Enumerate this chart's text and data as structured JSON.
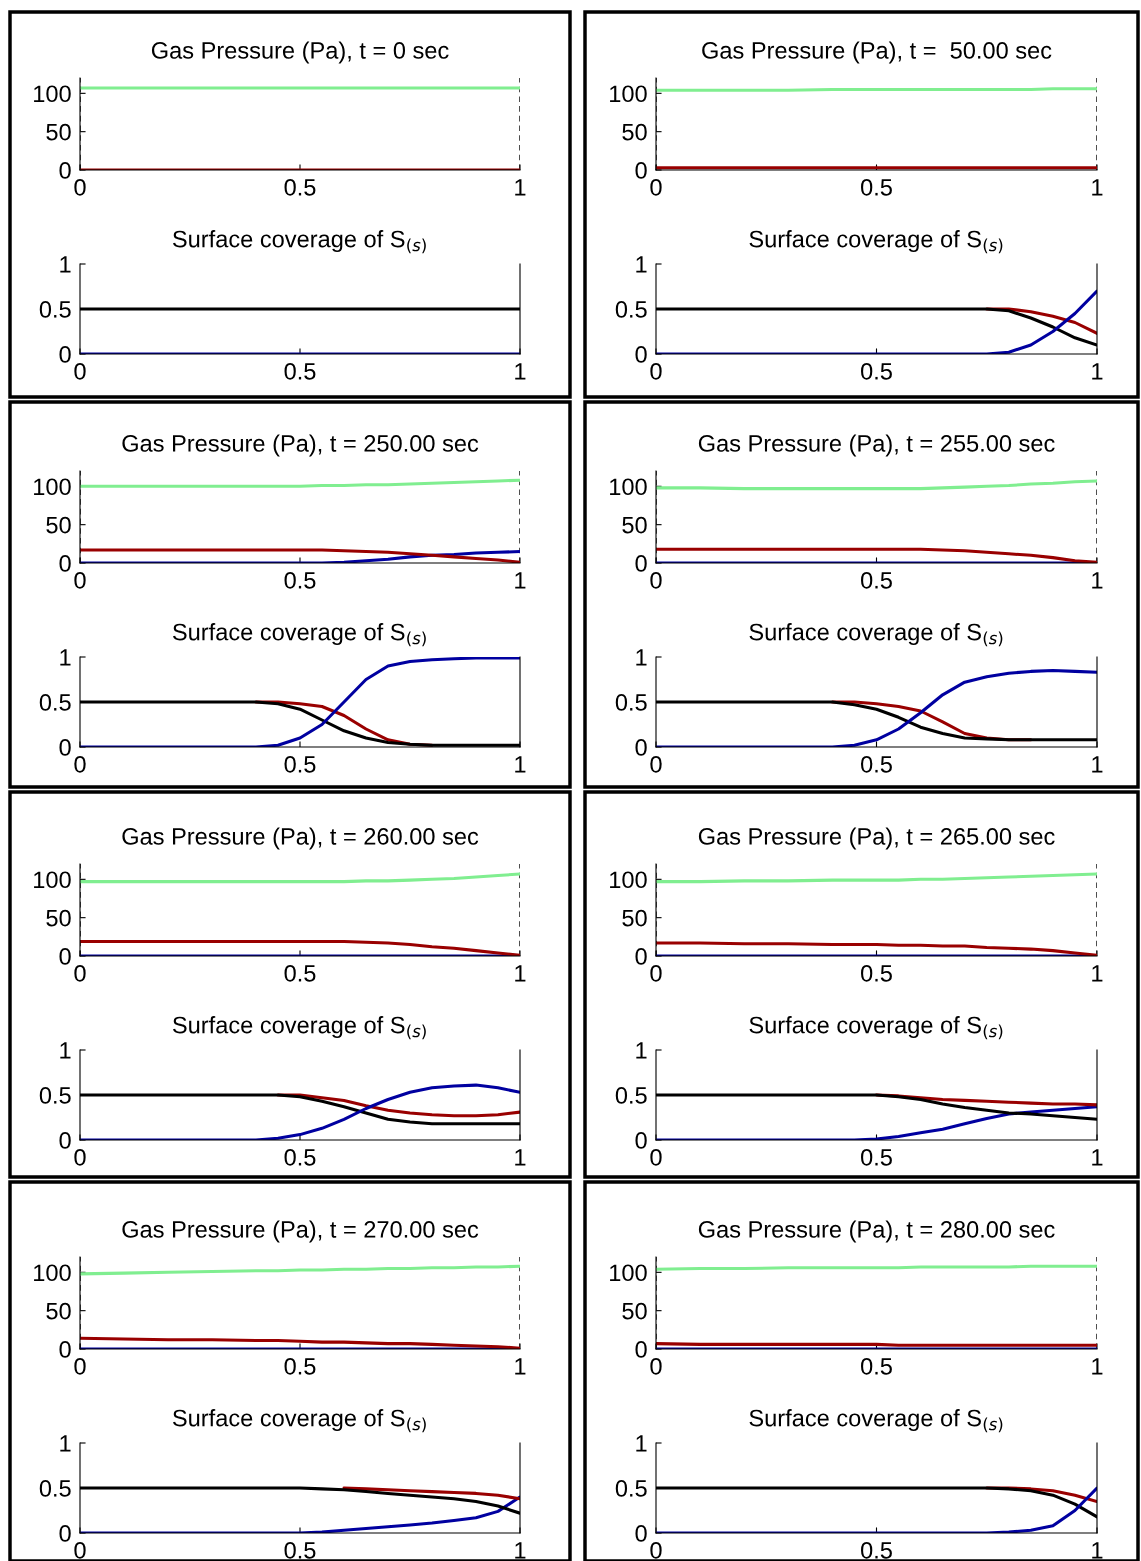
{
  "chart_data": [
    {
      "type": "line",
      "title": "Gas Pressure (Pa), t = 0 sec",
      "x": [
        0,
        0.1,
        0.2,
        0.3,
        0.4,
        0.45,
        0.5,
        0.55,
        0.6,
        0.65,
        0.7,
        0.75,
        0.8,
        0.85,
        0.9,
        0.95,
        1
      ],
      "xlim": [
        0,
        1
      ],
      "xticks": [
        0,
        0.5,
        1
      ],
      "ylim": [
        0,
        120
      ],
      "yticks": [
        0,
        50,
        100
      ],
      "ref_lines": [
        {
          "axis": "x",
          "value": 0,
          "line_style": "dashed",
          "color": "#000000"
        },
        {
          "axis": "x",
          "value": 1,
          "line_style": "dashed",
          "color": "#000000"
        }
      ],
      "series": [
        {
          "color": "#80ee90",
          "values": [
            107,
            107,
            107,
            107,
            107,
            107,
            107,
            107,
            107,
            107,
            107,
            107,
            107,
            107,
            107,
            107,
            107
          ]
        },
        {
          "color": "#990000",
          "values": [
            0,
            0,
            0,
            0,
            0,
            0,
            0,
            0,
            0,
            0,
            0,
            0,
            0,
            0,
            0,
            0,
            0
          ]
        }
      ]
    },
    {
      "type": "line",
      "title": "Gas Pressure (Pa), t =  50.00 sec",
      "x": [
        0,
        0.1,
        0.2,
        0.3,
        0.4,
        0.45,
        0.5,
        0.55,
        0.6,
        0.65,
        0.7,
        0.75,
        0.8,
        0.85,
        0.9,
        0.95,
        1
      ],
      "xlim": [
        0,
        1
      ],
      "xticks": [
        0,
        0.5,
        1
      ],
      "ylim": [
        0,
        120
      ],
      "yticks": [
        0,
        50,
        100
      ],
      "ref_lines": [
        {
          "axis": "x",
          "value": 0,
          "line_style": "dashed",
          "color": "#000000"
        },
        {
          "axis": "x",
          "value": 1,
          "line_style": "dashed",
          "color": "#000000"
        }
      ],
      "series": [
        {
          "color": "#80ee90",
          "values": [
            104,
            104,
            104,
            104,
            105,
            105,
            105,
            105,
            105,
            105,
            105,
            105,
            105,
            105,
            106,
            106,
            106
          ]
        },
        {
          "color": "#990000",
          "values": [
            3,
            3,
            3,
            3,
            3,
            3,
            3,
            3,
            3,
            3,
            3,
            3,
            3,
            3,
            3,
            3,
            3
          ]
        }
      ]
    },
    {
      "type": "line",
      "title": "Surface coverage of S$_{(s)}$",
      "x": [
        0,
        0.1,
        0.2,
        0.3,
        0.4,
        0.45,
        0.5,
        0.55,
        0.6,
        0.65,
        0.7,
        0.75,
        0.8,
        0.85,
        0.9,
        0.95,
        1
      ],
      "xlim": [
        0,
        1
      ],
      "xticks": [
        0,
        0.5,
        1
      ],
      "ylim": [
        0,
        1
      ],
      "yticks": [
        0,
        0.5,
        1
      ],
      "series": [
        {
          "color": "#000000",
          "values": [
            0.5,
            0.5,
            0.5,
            0.5,
            0.5,
            0.5,
            0.5,
            0.5,
            0.5,
            0.5,
            0.5,
            0.5,
            0.5,
            0.5,
            0.5,
            0.5,
            0.5
          ]
        },
        {
          "color": "#0000a0",
          "values": [
            0,
            0,
            0,
            0,
            0,
            0,
            0,
            0,
            0,
            0,
            0,
            0,
            0,
            0,
            0,
            0,
            0
          ]
        }
      ]
    },
    {
      "type": "line",
      "title": "Surface coverage of S$_{(s)}$",
      "x": [
        0,
        0.1,
        0.2,
        0.3,
        0.4,
        0.45,
        0.5,
        0.55,
        0.6,
        0.65,
        0.7,
        0.75,
        0.8,
        0.85,
        0.9,
        0.95,
        1
      ],
      "xlim": [
        0,
        1
      ],
      "xticks": [
        0,
        0.5,
        1
      ],
      "ylim": [
        0,
        1
      ],
      "yticks": [
        0,
        0.5,
        1
      ],
      "series": [
        {
          "color": "#990000",
          "values": [
            null,
            null,
            null,
            null,
            null,
            null,
            null,
            null,
            null,
            null,
            null,
            0.5,
            0.5,
            0.47,
            0.42,
            0.35,
            0.23
          ]
        },
        {
          "color": "#000000",
          "values": [
            0.5,
            0.5,
            0.5,
            0.5,
            0.5,
            0.5,
            0.5,
            0.5,
            0.5,
            0.5,
            0.5,
            0.5,
            0.48,
            0.4,
            0.3,
            0.18,
            0.1
          ]
        },
        {
          "color": "#0000a0",
          "values": [
            0,
            0,
            0,
            0,
            0,
            0,
            0,
            0,
            0,
            0,
            0,
            0,
            0.02,
            0.1,
            0.25,
            0.45,
            0.7
          ]
        }
      ]
    },
    {
      "type": "line",
      "title": "Gas Pressure (Pa), t = 250.00 sec",
      "x": [
        0,
        0.1,
        0.2,
        0.3,
        0.4,
        0.45,
        0.5,
        0.55,
        0.6,
        0.65,
        0.7,
        0.75,
        0.8,
        0.85,
        0.9,
        0.95,
        1
      ],
      "xlim": [
        0,
        1
      ],
      "xticks": [
        0,
        0.5,
        1
      ],
      "ylim": [
        0,
        120
      ],
      "yticks": [
        0,
        50,
        100
      ],
      "ref_lines": [
        {
          "axis": "x",
          "value": 0,
          "line_style": "dashed",
          "color": "#000000"
        },
        {
          "axis": "x",
          "value": 1,
          "line_style": "dashed",
          "color": "#000000"
        }
      ],
      "series": [
        {
          "color": "#80ee90",
          "values": [
            100,
            100,
            100,
            100,
            100,
            100,
            100,
            101,
            101,
            102,
            102,
            103,
            104,
            105,
            106,
            107,
            108
          ]
        },
        {
          "color": "#0000a0",
          "values": [
            0,
            0,
            0,
            0,
            0,
            0,
            0,
            0,
            1,
            3,
            5,
            8,
            10,
            11,
            13,
            14,
            15
          ]
        },
        {
          "color": "#990000",
          "values": [
            17,
            17,
            17,
            17,
            17,
            17,
            17,
            17,
            16,
            15,
            14,
            12,
            10,
            8,
            6,
            4,
            1
          ]
        }
      ]
    },
    {
      "type": "line",
      "title": "Gas Pressure (Pa), t = 255.00 sec",
      "x": [
        0,
        0.1,
        0.2,
        0.3,
        0.4,
        0.45,
        0.5,
        0.55,
        0.6,
        0.65,
        0.7,
        0.75,
        0.8,
        0.85,
        0.9,
        0.95,
        1
      ],
      "xlim": [
        0,
        1
      ],
      "xticks": [
        0,
        0.5,
        1
      ],
      "ylim": [
        0,
        120
      ],
      "yticks": [
        0,
        50,
        100
      ],
      "ref_lines": [
        {
          "axis": "x",
          "value": 0,
          "line_style": "dashed",
          "color": "#000000"
        },
        {
          "axis": "x",
          "value": 1,
          "line_style": "dashed",
          "color": "#000000"
        }
      ],
      "series": [
        {
          "color": "#80ee90",
          "values": [
            98,
            98,
            97,
            97,
            97,
            97,
            97,
            97,
            97,
            98,
            99,
            100,
            101,
            103,
            104,
            106,
            107
          ]
        },
        {
          "color": "#0000a0",
          "values": [
            0,
            0,
            0,
            0,
            0,
            0,
            0,
            0,
            0,
            0,
            0,
            0,
            0,
            0,
            0,
            0,
            0
          ]
        },
        {
          "color": "#990000",
          "values": [
            18,
            18,
            18,
            18,
            18,
            18,
            18,
            18,
            18,
            17,
            16,
            14,
            12,
            10,
            7,
            3,
            1
          ]
        }
      ]
    },
    {
      "type": "line",
      "title": "Surface coverage of S$_{(s)}$",
      "x": [
        0,
        0.1,
        0.2,
        0.3,
        0.4,
        0.45,
        0.5,
        0.55,
        0.6,
        0.65,
        0.7,
        0.75,
        0.8,
        0.85,
        0.9,
        0.95,
        1
      ],
      "xlim": [
        0,
        1
      ],
      "xticks": [
        0,
        0.5,
        1
      ],
      "ylim": [
        0,
        1
      ],
      "yticks": [
        0,
        0.5,
        1
      ],
      "series": [
        {
          "color": "#990000",
          "values": [
            null,
            null,
            null,
            null,
            0.5,
            0.5,
            0.48,
            0.45,
            0.35,
            0.2,
            0.08,
            0.03,
            0.02,
            null,
            null,
            null,
            null
          ]
        },
        {
          "color": "#000000",
          "values": [
            0.5,
            0.5,
            0.5,
            0.5,
            0.5,
            0.48,
            0.42,
            0.3,
            0.18,
            0.1,
            0.05,
            0.03,
            0.02,
            0.02,
            0.02,
            0.02,
            0.02
          ]
        },
        {
          "color": "#0000a0",
          "values": [
            0,
            0,
            0,
            0,
            0,
            0.02,
            0.1,
            0.25,
            0.5,
            0.75,
            0.9,
            0.95,
            0.97,
            0.98,
            0.99,
            0.99,
            0.99
          ]
        }
      ]
    },
    {
      "type": "line",
      "title": "Surface coverage of S$_{(s)}$",
      "x": [
        0,
        0.1,
        0.2,
        0.3,
        0.4,
        0.45,
        0.5,
        0.55,
        0.6,
        0.65,
        0.7,
        0.75,
        0.8,
        0.85,
        0.9,
        0.95,
        1
      ],
      "xlim": [
        0,
        1
      ],
      "xticks": [
        0,
        0.5,
        1
      ],
      "ylim": [
        0,
        1
      ],
      "yticks": [
        0,
        0.5,
        1
      ],
      "series": [
        {
          "color": "#990000",
          "values": [
            null,
            null,
            null,
            null,
            0.5,
            0.5,
            0.48,
            0.45,
            0.4,
            0.28,
            0.15,
            0.1,
            0.08,
            0.08,
            null,
            null,
            null
          ]
        },
        {
          "color": "#000000",
          "values": [
            0.5,
            0.5,
            0.5,
            0.5,
            0.5,
            0.47,
            0.42,
            0.33,
            0.22,
            0.15,
            0.1,
            0.09,
            0.08,
            0.08,
            0.08,
            0.08,
            0.08
          ]
        },
        {
          "color": "#0000a0",
          "values": [
            0,
            0,
            0,
            0,
            0,
            0.02,
            0.08,
            0.2,
            0.38,
            0.58,
            0.72,
            0.78,
            0.82,
            0.84,
            0.85,
            0.84,
            0.83
          ]
        }
      ]
    },
    {
      "type": "line",
      "title": "Gas Pressure (Pa), t = 260.00 sec",
      "x": [
        0,
        0.1,
        0.2,
        0.3,
        0.4,
        0.45,
        0.5,
        0.55,
        0.6,
        0.65,
        0.7,
        0.75,
        0.8,
        0.85,
        0.9,
        0.95,
        1
      ],
      "xlim": [
        0,
        1
      ],
      "xticks": [
        0,
        0.5,
        1
      ],
      "ylim": [
        0,
        120
      ],
      "yticks": [
        0,
        50,
        100
      ],
      "ref_lines": [
        {
          "axis": "x",
          "value": 0,
          "line_style": "dashed",
          "color": "#000000"
        },
        {
          "axis": "x",
          "value": 1,
          "line_style": "dashed",
          "color": "#000000"
        }
      ],
      "series": [
        {
          "color": "#80ee90",
          "values": [
            97,
            97,
            97,
            97,
            97,
            97,
            97,
            97,
            97,
            98,
            98,
            99,
            100,
            101,
            103,
            105,
            107
          ]
        },
        {
          "color": "#0000a0",
          "values": [
            0,
            0,
            0,
            0,
            0,
            0,
            0,
            0,
            0,
            0,
            0,
            0,
            0,
            0,
            0,
            0,
            0
          ]
        },
        {
          "color": "#990000",
          "values": [
            19,
            19,
            19,
            19,
            19,
            19,
            19,
            19,
            19,
            18,
            17,
            15,
            12,
            10,
            7,
            4,
            1
          ]
        }
      ]
    },
    {
      "type": "line",
      "title": "Gas Pressure (Pa), t = 265.00 sec",
      "x": [
        0,
        0.1,
        0.2,
        0.3,
        0.4,
        0.45,
        0.5,
        0.55,
        0.6,
        0.65,
        0.7,
        0.75,
        0.8,
        0.85,
        0.9,
        0.95,
        1
      ],
      "xlim": [
        0,
        1
      ],
      "xticks": [
        0,
        0.5,
        1
      ],
      "ylim": [
        0,
        120
      ],
      "yticks": [
        0,
        50,
        100
      ],
      "ref_lines": [
        {
          "axis": "x",
          "value": 0,
          "line_style": "dashed",
          "color": "#000000"
        },
        {
          "axis": "x",
          "value": 1,
          "line_style": "dashed",
          "color": "#000000"
        }
      ],
      "series": [
        {
          "color": "#80ee90",
          "values": [
            97,
            97,
            98,
            98,
            99,
            99,
            99,
            99,
            100,
            100,
            101,
            102,
            103,
            104,
            105,
            106,
            107
          ]
        },
        {
          "color": "#0000a0",
          "values": [
            0,
            0,
            0,
            0,
            0,
            0,
            0,
            0,
            0,
            0,
            0,
            0,
            0,
            0,
            0,
            0,
            0
          ]
        },
        {
          "color": "#990000",
          "values": [
            17,
            17,
            16,
            16,
            15,
            15,
            15,
            14,
            14,
            13,
            13,
            11,
            10,
            9,
            7,
            4,
            1
          ]
        }
      ]
    },
    {
      "type": "line",
      "title": "Surface coverage of S$_{(s)}$",
      "x": [
        0,
        0.1,
        0.2,
        0.3,
        0.4,
        0.45,
        0.5,
        0.55,
        0.6,
        0.65,
        0.7,
        0.75,
        0.8,
        0.85,
        0.9,
        0.95,
        1
      ],
      "xlim": [
        0,
        1
      ],
      "xticks": [
        0,
        0.5,
        1
      ],
      "ylim": [
        0,
        1
      ],
      "yticks": [
        0,
        0.5,
        1
      ],
      "series": [
        {
          "color": "#990000",
          "values": [
            null,
            null,
            null,
            null,
            null,
            0.5,
            0.5,
            0.47,
            0.44,
            0.38,
            0.33,
            0.3,
            0.28,
            0.27,
            0.27,
            0.28,
            0.31
          ]
        },
        {
          "color": "#000000",
          "values": [
            0.5,
            0.5,
            0.5,
            0.5,
            0.5,
            0.5,
            0.48,
            0.43,
            0.37,
            0.3,
            0.23,
            0.2,
            0.18,
            0.18,
            0.18,
            0.18,
            0.18
          ]
        },
        {
          "color": "#0000a0",
          "values": [
            0,
            0,
            0,
            0,
            0,
            0.02,
            0.06,
            0.13,
            0.23,
            0.35,
            0.45,
            0.53,
            0.58,
            0.6,
            0.61,
            0.58,
            0.53
          ]
        }
      ]
    },
    {
      "type": "line",
      "title": "Surface coverage of S$_{(s)}$",
      "x": [
        0,
        0.1,
        0.2,
        0.3,
        0.4,
        0.45,
        0.5,
        0.55,
        0.6,
        0.65,
        0.7,
        0.75,
        0.8,
        0.85,
        0.9,
        0.95,
        1
      ],
      "xlim": [
        0,
        1
      ],
      "xticks": [
        0,
        0.5,
        1
      ],
      "ylim": [
        0,
        1
      ],
      "yticks": [
        0,
        0.5,
        1
      ],
      "series": [
        {
          "color": "#0000a0",
          "values": [
            0,
            0,
            0,
            0,
            0,
            0,
            0.01,
            0.04,
            0.08,
            0.12,
            0.18,
            0.24,
            0.29,
            0.31,
            0.33,
            0.35,
            0.37
          ]
        },
        {
          "color": "#990000",
          "values": [
            null,
            null,
            null,
            null,
            null,
            null,
            0.5,
            0.49,
            0.47,
            0.45,
            0.44,
            0.43,
            0.42,
            0.41,
            0.4,
            0.4,
            0.39
          ]
        },
        {
          "color": "#000000",
          "values": [
            0.5,
            0.5,
            0.5,
            0.5,
            0.5,
            0.5,
            0.5,
            0.48,
            0.45,
            0.4,
            0.36,
            0.33,
            0.3,
            0.29,
            0.27,
            0.25,
            0.23
          ]
        }
      ]
    },
    {
      "type": "line",
      "title": "Gas Pressure (Pa), t = 270.00 sec",
      "x": [
        0,
        0.1,
        0.2,
        0.3,
        0.4,
        0.45,
        0.5,
        0.55,
        0.6,
        0.65,
        0.7,
        0.75,
        0.8,
        0.85,
        0.9,
        0.95,
        1
      ],
      "xlim": [
        0,
        1
      ],
      "xticks": [
        0,
        0.5,
        1
      ],
      "ylim": [
        0,
        120
      ],
      "yticks": [
        0,
        50,
        100
      ],
      "ref_lines": [
        {
          "axis": "x",
          "value": 0,
          "line_style": "dashed",
          "color": "#000000"
        },
        {
          "axis": "x",
          "value": 1,
          "line_style": "dashed",
          "color": "#000000"
        }
      ],
      "series": [
        {
          "color": "#80ee90",
          "values": [
            98,
            99,
            100,
            101,
            102,
            102,
            103,
            103,
            104,
            104,
            105,
            105,
            106,
            106,
            107,
            107,
            108
          ]
        },
        {
          "color": "#0000a0",
          "values": [
            0,
            0,
            0,
            0,
            0,
            0,
            0,
            0,
            0,
            0,
            0,
            0,
            0,
            0,
            0,
            0,
            0
          ]
        },
        {
          "color": "#990000",
          "values": [
            14,
            13,
            12,
            12,
            11,
            11,
            10,
            9,
            9,
            8,
            7,
            7,
            6,
            5,
            4,
            3,
            1
          ]
        }
      ]
    },
    {
      "type": "line",
      "title": "Gas Pressure (Pa), t = 280.00 sec",
      "x": [
        0,
        0.1,
        0.2,
        0.3,
        0.4,
        0.45,
        0.5,
        0.55,
        0.6,
        0.65,
        0.7,
        0.75,
        0.8,
        0.85,
        0.9,
        0.95,
        1
      ],
      "xlim": [
        0,
        1
      ],
      "xticks": [
        0,
        0.5,
        1
      ],
      "ylim": [
        0,
        120
      ],
      "yticks": [
        0,
        50,
        100
      ],
      "ref_lines": [
        {
          "axis": "x",
          "value": 0,
          "line_style": "dashed",
          "color": "#000000"
        },
        {
          "axis": "x",
          "value": 1,
          "line_style": "dashed",
          "color": "#000000"
        }
      ],
      "series": [
        {
          "color": "#80ee90",
          "values": [
            104,
            105,
            105,
            106,
            106,
            106,
            106,
            106,
            107,
            107,
            107,
            107,
            107,
            108,
            108,
            108,
            108
          ]
        },
        {
          "color": "#990000",
          "values": [
            7,
            6,
            6,
            6,
            6,
            6,
            6,
            5,
            5,
            5,
            5,
            5,
            5,
            5,
            5,
            5,
            5
          ]
        },
        {
          "color": "#0000a0",
          "values": [
            0,
            0,
            0,
            0,
            0,
            0,
            0,
            0,
            0,
            0,
            0,
            0,
            0,
            0,
            0,
            0,
            0
          ]
        }
      ]
    },
    {
      "type": "line",
      "title": "Surface coverage of S$_{(s)}$",
      "x": [
        0,
        0.1,
        0.2,
        0.3,
        0.4,
        0.45,
        0.5,
        0.55,
        0.6,
        0.65,
        0.7,
        0.75,
        0.8,
        0.85,
        0.9,
        0.95,
        1
      ],
      "xlim": [
        0,
        1
      ],
      "xticks": [
        0,
        0.5,
        1
      ],
      "ylim": [
        0,
        1
      ],
      "yticks": [
        0,
        0.5,
        1
      ],
      "series": [
        {
          "color": "#0000a0",
          "values": [
            0,
            0,
            0,
            0,
            0,
            0,
            0,
            0.01,
            0.03,
            0.05,
            0.07,
            0.09,
            0.11,
            0.14,
            0.17,
            0.24,
            0.4
          ]
        },
        {
          "color": "#990000",
          "values": [
            null,
            null,
            null,
            null,
            null,
            null,
            null,
            null,
            0.5,
            0.49,
            0.48,
            0.47,
            0.46,
            0.45,
            0.44,
            0.42,
            0.38
          ]
        },
        {
          "color": "#000000",
          "values": [
            0.5,
            0.5,
            0.5,
            0.5,
            0.5,
            0.5,
            0.5,
            0.49,
            0.48,
            0.46,
            0.44,
            0.42,
            0.4,
            0.38,
            0.35,
            0.3,
            0.22
          ]
        }
      ]
    },
    {
      "type": "line",
      "title": "Surface coverage of S$_{(s)}$",
      "x": [
        0,
        0.1,
        0.2,
        0.3,
        0.4,
        0.45,
        0.5,
        0.55,
        0.6,
        0.65,
        0.7,
        0.75,
        0.8,
        0.85,
        0.9,
        0.95,
        1
      ],
      "xlim": [
        0,
        1
      ],
      "xticks": [
        0,
        0.5,
        1
      ],
      "ylim": [
        0,
        1
      ],
      "yticks": [
        0,
        0.5,
        1
      ],
      "series": [
        {
          "color": "#990000",
          "values": [
            null,
            null,
            null,
            null,
            null,
            null,
            null,
            null,
            null,
            null,
            null,
            0.5,
            0.5,
            0.49,
            0.47,
            0.42,
            0.35
          ]
        },
        {
          "color": "#000000",
          "values": [
            0.5,
            0.5,
            0.5,
            0.5,
            0.5,
            0.5,
            0.5,
            0.5,
            0.5,
            0.5,
            0.5,
            0.5,
            0.49,
            0.47,
            0.42,
            0.32,
            0.18
          ]
        },
        {
          "color": "#0000a0",
          "values": [
            0,
            0,
            0,
            0,
            0,
            0,
            0,
            0,
            0,
            0,
            0,
            0,
            0.01,
            0.03,
            0.08,
            0.25,
            0.5
          ]
        }
      ]
    }
  ]
}
